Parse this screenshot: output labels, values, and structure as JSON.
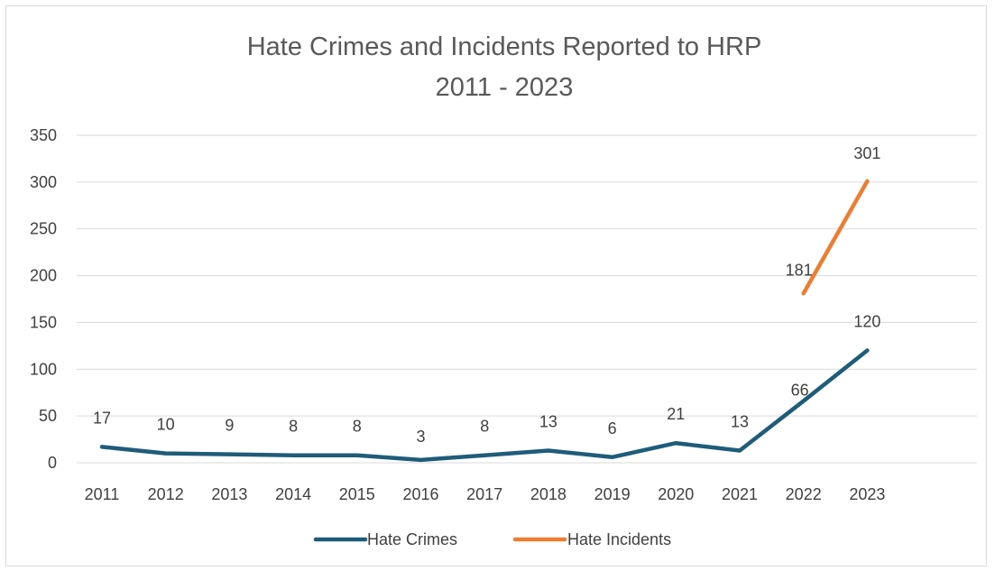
{
  "chart_data": {
    "type": "line",
    "title": "Hate Crimes and Incidents Reported to HRP",
    "subtitle": "2011 - 2023",
    "categories": [
      "2011",
      "2012",
      "2013",
      "2014",
      "2015",
      "2016",
      "2017",
      "2018",
      "2019",
      "2020",
      "2021",
      "2022",
      "2023"
    ],
    "series": [
      {
        "name": "Hate Crimes",
        "color": "#1f5c7a",
        "values": [
          17,
          10,
          9,
          8,
          8,
          3,
          8,
          13,
          6,
          21,
          13,
          66,
          120
        ]
      },
      {
        "name": "Hate Incidents",
        "color": "#ed7d31",
        "values": [
          null,
          null,
          null,
          null,
          null,
          null,
          null,
          null,
          null,
          null,
          null,
          181,
          301
        ]
      }
    ],
    "ylim": [
      0,
      350
    ],
    "yticks": [
      0,
      50,
      100,
      150,
      200,
      250,
      300,
      350
    ],
    "grid": true,
    "legend_position": "bottom",
    "data_labels": true
  }
}
